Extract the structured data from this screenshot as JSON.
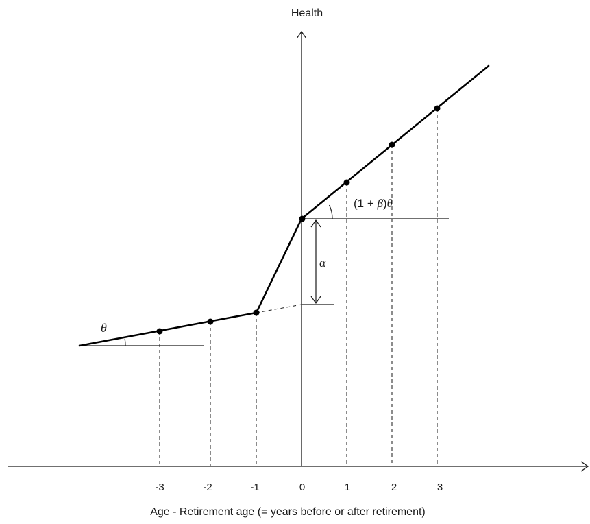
{
  "y_axis_label": "Health",
  "x_axis_label": "Age - Retirement age (= years before or after retirement)",
  "x_ticks": [
    "-3",
    "-2",
    "-1",
    "0",
    "1",
    "2",
    "3"
  ],
  "annotations": {
    "theta": "θ",
    "alpha": "α",
    "slope_post_prefix": "(1 + ",
    "slope_post_beta": "β",
    "slope_post_suffix": ")",
    "slope_post_theta": "θ"
  }
}
